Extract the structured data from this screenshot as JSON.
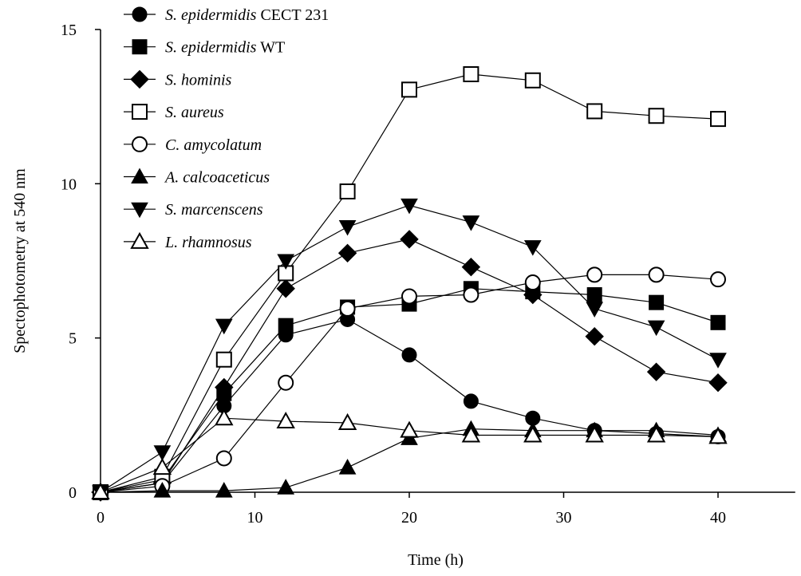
{
  "chart_data": {
    "type": "line",
    "title": "",
    "xlabel": "Time (h)",
    "ylabel": "Spectophotometry at 540 nm",
    "xlim": [
      0,
      45
    ],
    "ylim": [
      0,
      15
    ],
    "xticks": [
      0,
      10,
      20,
      30,
      40
    ],
    "yticks": [
      0,
      5,
      10,
      15
    ],
    "grid": false,
    "legend": "top-left",
    "x": [
      0,
      4,
      8,
      12,
      16,
      20,
      24,
      28,
      32,
      36,
      40
    ],
    "series": [
      {
        "name_italic": "S. epidermidis",
        "name_plain": " CECT 231",
        "marker": "circle-filled",
        "values": [
          0,
          0.3,
          2.8,
          5.1,
          5.6,
          4.45,
          2.95,
          2.4,
          2.0,
          1.9,
          1.8
        ]
      },
      {
        "name_italic": "S. epidermidis",
        "name_plain": " WT",
        "marker": "square-filled",
        "values": [
          0,
          0.4,
          3.2,
          5.4,
          6.0,
          6.1,
          6.6,
          6.5,
          6.4,
          6.15,
          5.5
        ]
      },
      {
        "name_italic": "S. hominis",
        "name_plain": "",
        "marker": "diamond-filled",
        "values": [
          0,
          0.3,
          3.4,
          6.6,
          7.75,
          8.2,
          7.3,
          6.4,
          5.05,
          3.9,
          3.55
        ]
      },
      {
        "name_italic": "S. aureus",
        "name_plain": "",
        "marker": "square-open",
        "values": [
          0,
          0.5,
          4.3,
          7.1,
          9.75,
          13.05,
          13.55,
          13.35,
          12.35,
          12.2,
          12.1
        ]
      },
      {
        "name_italic": "C. amycolatum",
        "name_plain": "",
        "marker": "circle-open",
        "values": [
          0,
          0.2,
          1.1,
          3.55,
          5.95,
          6.35,
          6.4,
          6.8,
          7.05,
          7.05,
          6.9
        ]
      },
      {
        "name_italic": "A. calcoaceticus",
        "name_plain": "",
        "marker": "triangle-up-filled",
        "values": [
          0,
          0.05,
          0.05,
          0.15,
          0.8,
          1.75,
          2.05,
          2.0,
          2.0,
          2.0,
          1.85
        ]
      },
      {
        "name_italic": "S. marcenscens",
        "name_plain": "",
        "marker": "triangle-down-filled",
        "values": [
          0,
          1.3,
          5.4,
          7.5,
          8.6,
          9.3,
          8.75,
          7.95,
          5.95,
          5.35,
          4.3
        ]
      },
      {
        "name_italic": "L. rhamnosus",
        "name_plain": "",
        "marker": "triangle-up-open",
        "values": [
          0,
          0.8,
          2.4,
          2.3,
          2.25,
          2.0,
          1.85,
          1.85,
          1.85,
          1.85,
          1.8
        ]
      }
    ]
  }
}
